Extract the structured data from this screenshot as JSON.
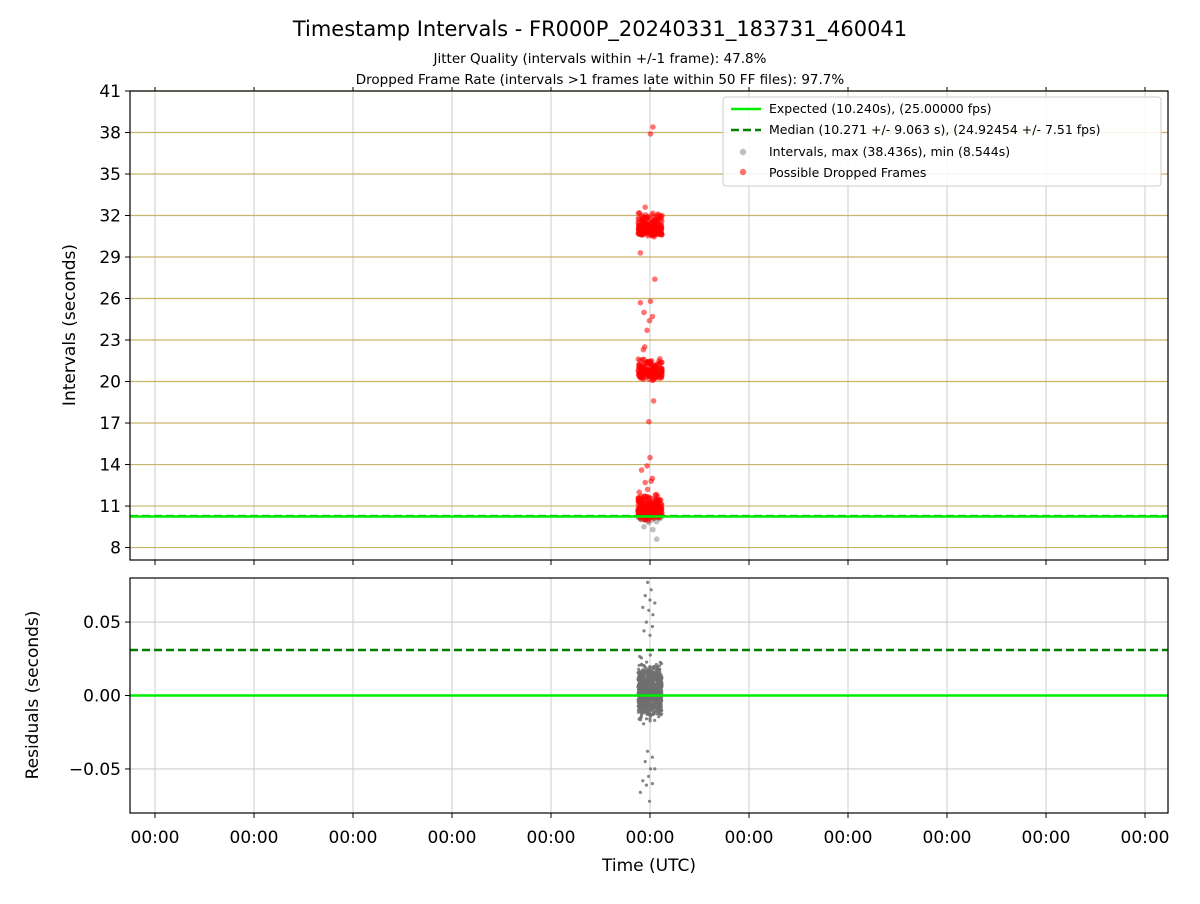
{
  "title": "Timestamp Intervals - FR000P_20240331_183731_460041",
  "subtitle_jitter": "Jitter Quality (intervals within +/-1 frame): 47.8%",
  "subtitle_dropped": "Dropped Frame Rate (intervals >1 frames late within 50 FF files): 97.7%",
  "xlabel": "Time (UTC)",
  "x_ticks": [
    "00:00",
    "00:00",
    "00:00",
    "00:00",
    "00:00",
    "00:00",
    "00:00",
    "00:00",
    "00:00",
    "00:00",
    "00:00"
  ],
  "colors": {
    "expected": "#00ee00",
    "median": "#008000",
    "intervals": "#808080",
    "dropped": "#ff0000",
    "grid_horizontal_top": "#c9b46b",
    "grid": "#cccccc"
  },
  "chart_data": [
    {
      "type": "scatter",
      "name": "intervals",
      "ylabel": "Intervals (seconds)",
      "ylim": [
        7.1,
        41
      ],
      "y_ticks": [
        8,
        11,
        14,
        17,
        20,
        23,
        26,
        29,
        32,
        35,
        38,
        41
      ],
      "expected_line": 10.24,
      "median_line": 10.271,
      "legend_placement": "top-right",
      "legend": [
        "Expected (10.240s), (25.00000 fps)",
        "Median (10.271 +/- 9.063 s), (24.92454 +/- 7.51 fps)",
        "Intervals, max (38.436s), min (8.544s)",
        "Possible Dropped Frames"
      ],
      "series": [
        {
          "name": "Intervals, max (38.436s), min (8.544s)",
          "clusters": [
            {
              "y_center": 10.2,
              "y_spread": 0.25,
              "count": 60
            }
          ],
          "points": [
            [
              0.25,
              9.5
            ],
            [
              0.62,
              9.3
            ],
            [
              0.58,
              10.0
            ],
            [
              0.78,
              8.6
            ],
            [
              0.45,
              9.8
            ]
          ]
        },
        {
          "name": "Possible Dropped Frames",
          "clusters": [
            {
              "y_center": 10.6,
              "y_spread": 0.45,
              "count": 260
            },
            {
              "y_center": 11.3,
              "y_spread": 0.5,
              "count": 60
            },
            {
              "y_center": 20.6,
              "y_spread": 0.45,
              "count": 180
            },
            {
              "y_center": 21.4,
              "y_spread": 0.3,
              "count": 30
            },
            {
              "y_center": 31.0,
              "y_spread": 0.45,
              "count": 200
            },
            {
              "y_center": 31.8,
              "y_spread": 0.35,
              "count": 40
            }
          ],
          "points": [
            [
              0.62,
              38.4
            ],
            [
              0.52,
              37.9
            ],
            [
              0.3,
              32.6
            ],
            [
              0.7,
              27.4
            ],
            [
              0.1,
              25.7
            ],
            [
              0.52,
              25.8
            ],
            [
              0.6,
              24.7
            ],
            [
              0.25,
              25.0
            ],
            [
              0.48,
              24.4
            ],
            [
              0.38,
              23.7
            ],
            [
              0.28,
              22.5
            ],
            [
              0.22,
              22.3
            ],
            [
              0.1,
              29.3
            ],
            [
              0.65,
              18.6
            ],
            [
              0.45,
              17.1
            ],
            [
              0.15,
              13.6
            ],
            [
              0.5,
              14.5
            ],
            [
              0.38,
              13.9
            ],
            [
              0.55,
              12.8
            ],
            [
              0.3,
              12.7
            ],
            [
              0.6,
              13.0
            ],
            [
              0.4,
              12.2
            ],
            [
              0.05,
              12.0
            ],
            [
              0.72,
              11.8
            ]
          ]
        }
      ]
    },
    {
      "type": "scatter",
      "name": "residuals",
      "ylabel": "Residuals (seconds)",
      "ylim": [
        -0.08,
        0.08
      ],
      "y_ticks": [
        0.05,
        0.0,
        -0.05
      ],
      "y_tick_labels": [
        "0.05",
        "0.00",
        "−0.05"
      ],
      "expected_line": 0.0,
      "median_line": 0.031,
      "series": [
        {
          "name": "residuals",
          "clusters": [
            {
              "y_center": 0.003,
              "y_spread": 0.016,
              "count": 900
            }
          ],
          "points": [
            [
              0.4,
              0.077
            ],
            [
              0.55,
              0.072
            ],
            [
              0.3,
              0.068
            ],
            [
              0.5,
              0.065
            ],
            [
              0.7,
              0.063
            ],
            [
              0.2,
              0.06
            ],
            [
              0.45,
              0.058
            ],
            [
              0.62,
              0.055
            ],
            [
              0.35,
              0.05
            ],
            [
              0.6,
              0.047
            ],
            [
              0.25,
              0.044
            ],
            [
              0.5,
              0.041
            ],
            [
              0.4,
              -0.038
            ],
            [
              0.6,
              -0.042
            ],
            [
              0.3,
              -0.045
            ],
            [
              0.52,
              -0.05
            ],
            [
              0.44,
              -0.055
            ],
            [
              0.2,
              -0.058
            ],
            [
              0.7,
              -0.05
            ],
            [
              0.35,
              -0.061
            ],
            [
              0.1,
              -0.066
            ],
            [
              0.48,
              -0.072
            ],
            [
              0.6,
              -0.06
            ]
          ]
        }
      ]
    }
  ]
}
